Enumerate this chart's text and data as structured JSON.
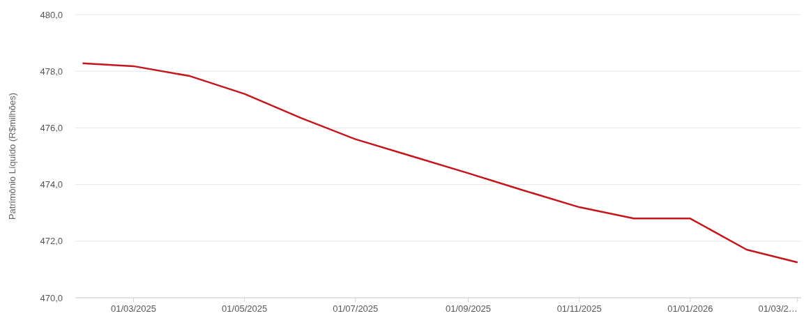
{
  "chart_data": {
    "type": "line",
    "ylabel": "Patrimônio Líquido (R$milhões)",
    "x": [
      "2025-02-01",
      "2025-03-01",
      "2025-04-01",
      "2025-05-01",
      "2025-06-01",
      "2025-07-01",
      "2025-08-01",
      "2025-09-01",
      "2025-10-01",
      "2025-11-01",
      "2025-12-01",
      "2026-01-01",
      "2026-02-01",
      "2026-03-01"
    ],
    "series": [
      {
        "color": "#c4161c",
        "values": [
          478.28,
          478.18,
          477.83,
          477.2,
          476.35,
          475.6,
          475.0,
          474.4,
          473.8,
          473.2,
          472.8,
          472.8,
          471.7,
          471.25
        ]
      }
    ],
    "xlim": [
      "2025-01-28",
      "2026-03-03"
    ],
    "xticks": [
      {
        "value": "2025-03-01",
        "label": "01/03/2025"
      },
      {
        "value": "2025-05-01",
        "label": "01/05/2025"
      },
      {
        "value": "2025-07-01",
        "label": "01/07/2025"
      },
      {
        "value": "2025-09-01",
        "label": "01/09/2025"
      },
      {
        "value": "2025-11-01",
        "label": "01/11/2025"
      },
      {
        "value": "2026-01-01",
        "label": "01/01/2026"
      },
      {
        "value": "2026-03-01",
        "label": "01/03/2…"
      }
    ],
    "ylim": [
      470,
      480
    ],
    "yticks": [
      {
        "value": 470,
        "label": "470,0"
      },
      {
        "value": 472,
        "label": "472,0"
      },
      {
        "value": 474,
        "label": "474,0"
      },
      {
        "value": 476,
        "label": "476,0"
      },
      {
        "value": 478,
        "label": "478,0"
      },
      {
        "value": 480,
        "label": "480,0"
      }
    ],
    "grid": "y",
    "marker": "none",
    "line_style": "solid"
  }
}
